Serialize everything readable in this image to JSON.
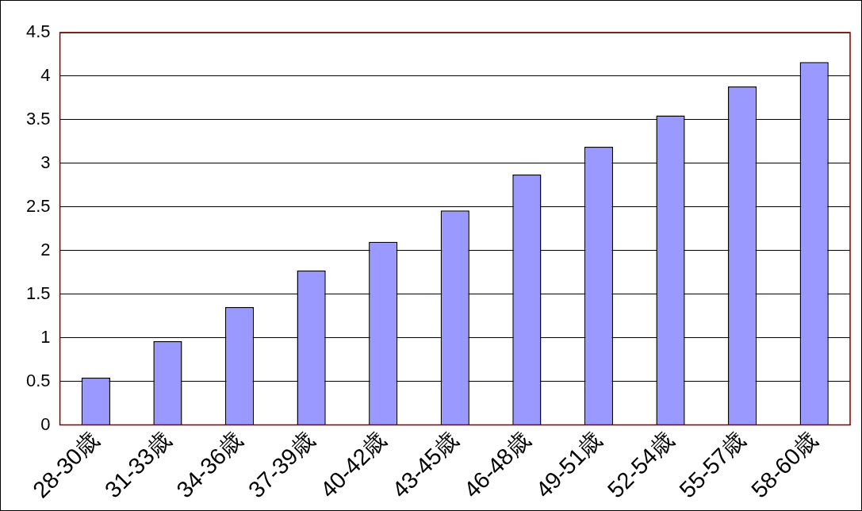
{
  "chart_data": {
    "type": "bar",
    "categories": [
      "28-30歳",
      "31-33歳",
      "34-36歳",
      "37-39歳",
      "40-42歳",
      "43-45歳",
      "46-48歳",
      "49-51歳",
      "52-54歳",
      "55-57歳",
      "58-60歳"
    ],
    "values": [
      0.54,
      0.96,
      1.35,
      1.77,
      2.1,
      2.46,
      2.87,
      3.19,
      3.55,
      3.88,
      4.16
    ],
    "color": "#9999ff",
    "ylim": [
      0,
      4.5
    ],
    "yticks": [
      0,
      0.5,
      1,
      1.5,
      2,
      2.5,
      3,
      3.5,
      4,
      4.5
    ],
    "grid": "y",
    "legend": false
  }
}
